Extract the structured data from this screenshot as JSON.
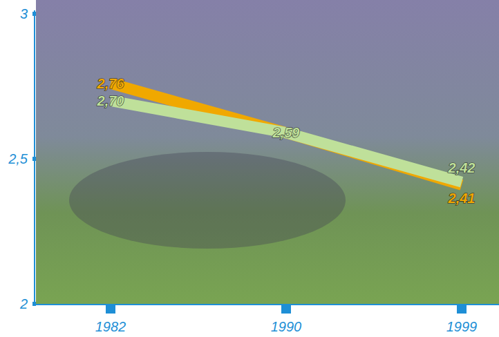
{
  "chart_data": {
    "type": "line",
    "categories": [
      "1982",
      "1990",
      "1999"
    ],
    "series": [
      {
        "color": "#f0a800",
        "values": [
          2.76,
          2.59,
          2.41
        ],
        "value_labels": [
          "2,76",
          null,
          "2,41"
        ]
      },
      {
        "color": "#bfe09a",
        "values": [
          2.7,
          2.59,
          2.42
        ],
        "value_labels": [
          "2,70",
          "2,59",
          "2,42"
        ]
      }
    ],
    "ylim": [
      2,
      3
    ],
    "yticks": [
      2,
      {
        "value": 2.5,
        "label": "2,5"
      },
      3
    ],
    "grid": false,
    "data_labels": true
  }
}
